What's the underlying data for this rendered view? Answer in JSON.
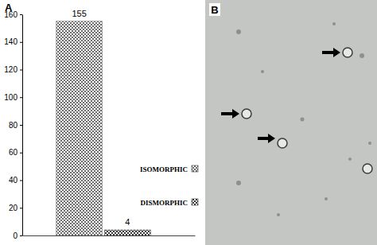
{
  "chart_data": {
    "type": "bar",
    "title": "A",
    "categories": [
      "ISOMORPHIC",
      "DISMORPHIC"
    ],
    "values": [
      155,
      4
    ],
    "colors": [
      "#6e6e6e",
      "#3a3a3a"
    ],
    "ylim": [
      0,
      160
    ],
    "yticks": [
      0,
      20,
      40,
      60,
      80,
      100,
      120,
      140,
      160
    ],
    "data_labels": true,
    "legend": "right",
    "tick_labels": "y",
    "grid": false
  },
  "image_panel": {
    "label": "B"
  }
}
